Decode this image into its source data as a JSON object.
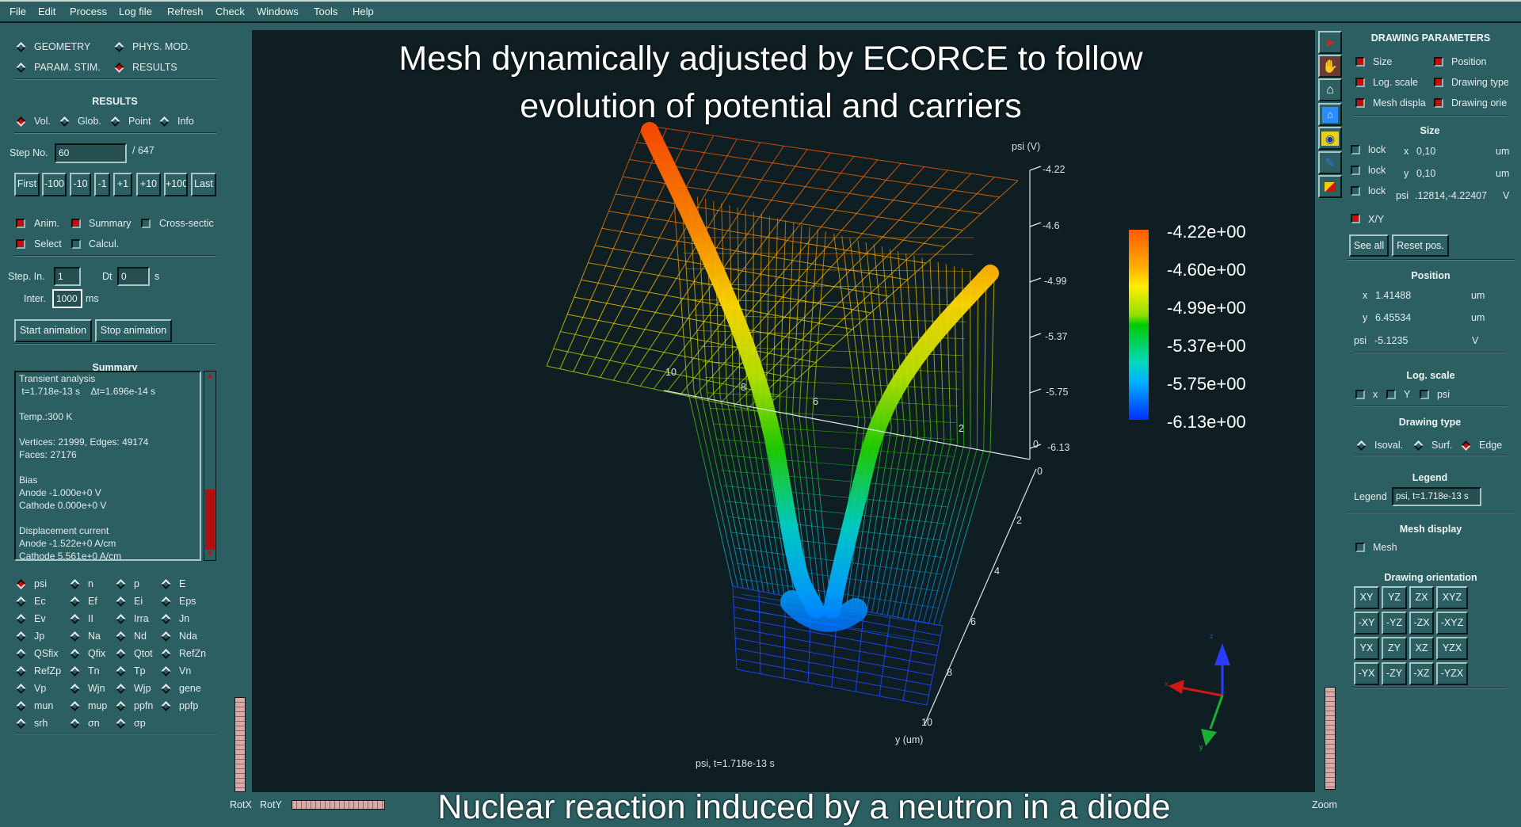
{
  "menubar": [
    "File",
    "Edit",
    "Process",
    "Log file",
    "Refresh",
    "Check",
    "Windows",
    "Tools",
    "Help"
  ],
  "mode": {
    "items": [
      {
        "label": "GEOMETRY",
        "selected": false
      },
      {
        "label": "PHYS. MOD.",
        "selected": false
      },
      {
        "label": "PARAM. STIM.",
        "selected": false
      },
      {
        "label": "RESULTS",
        "selected": true
      }
    ]
  },
  "results": {
    "title": "RESULTS",
    "views": [
      {
        "label": "Vol.",
        "selected": true
      },
      {
        "label": "Glob.",
        "selected": false
      },
      {
        "label": "Point",
        "selected": false
      },
      {
        "label": "Info",
        "selected": false
      }
    ],
    "step_label": "Step No.",
    "step_value": "60",
    "step_total": "/ 647",
    "step_buttons": [
      "First",
      "-100",
      "-10",
      "-1",
      "+1",
      "+10",
      "+100",
      "Last"
    ],
    "checks": [
      {
        "label": "Anim.",
        "checked": true
      },
      {
        "label": "Summary",
        "checked": true
      },
      {
        "label": "Cross-sectic",
        "checked": false
      },
      {
        "label": "Select",
        "checked": true
      },
      {
        "label": "Calcul.",
        "checked": false
      }
    ],
    "step_in_label": "Step. In.",
    "step_in_value": "1",
    "dt_label": "Dt",
    "dt_value": "0",
    "dt_unit": "s",
    "inter_label": "Inter.",
    "inter_value": "1000",
    "inter_unit": "ms",
    "start_animation": "Start animation",
    "stop_animation": "Stop animation"
  },
  "summary": {
    "title": "Summary",
    "lines": [
      "Transient analysis",
      " t=1.718e-13 s    Δt=1.696e-14 s",
      "",
      "Temp.:300 K",
      "",
      "Vertices: 21999, Edges: 49174",
      "Faces: 27176",
      "",
      "Bias",
      "Anode -1.000e+0 V",
      "Cathode 0.000e+0 V",
      "",
      "Displacement current",
      "Anode -1.522e+0 A/cm",
      "Cathode 5.561e+0 A/cm"
    ]
  },
  "quantities": [
    [
      "psi",
      "n",
      "p",
      "E"
    ],
    [
      "Ec",
      "Ef",
      "Ei",
      "Eps"
    ],
    [
      "Ev",
      "II",
      "Irra",
      "Jn"
    ],
    [
      "Jp",
      "Na",
      "Nd",
      "Nda"
    ],
    [
      "QSfix",
      "Qfix",
      "Qtot",
      "RefZn"
    ],
    [
      "RefZp",
      "Tn",
      "Tp",
      "Vn"
    ],
    [
      "Vp",
      "Wjn",
      "Wjp",
      "gene"
    ],
    [
      "mun",
      "mup",
      "ppfn",
      "ppfp"
    ],
    [
      "srh",
      "σn",
      "σp",
      ""
    ]
  ],
  "selected_quantity": "psi",
  "rot": {
    "rotx": "RotX",
    "roty": "RotY"
  },
  "overlay": {
    "title_line1": "Mesh dynamically adjusted by ECORCE to follow",
    "title_line2": "evolution of potential and carriers",
    "caption": "Nuclear reaction induced by a neutron in a diode"
  },
  "plot": {
    "z_label": "psi (V)",
    "z_ticks": [
      "-4.22",
      "-4.6",
      "-4.99",
      "-5.37",
      "-5.75",
      "-6.13"
    ],
    "x_ticks": [
      "10",
      "8",
      "6",
      "2",
      "0"
    ],
    "y_ticks": [
      "0",
      "2",
      "4",
      "6",
      "8",
      "10"
    ],
    "y_label": "y (um)",
    "colorbar": [
      "-4.22e+00",
      "-4.60e+00",
      "-4.99e+00",
      "-5.37e+00",
      "-5.75e+00",
      "-6.13e+00"
    ],
    "colormap": [
      "#ff5a00",
      "#ffb000",
      "#ffee00",
      "#8fe000",
      "#00cc00",
      "#00d8c0",
      "#00b0ff",
      "#0030ff"
    ],
    "legend": "psi, t=1.718e-13 s",
    "gizmo": {
      "x": "x",
      "y": "y",
      "z": "z"
    }
  },
  "toolbar": [
    "pointer-icon",
    "hand-icon",
    "home-icon",
    "fit-view-icon",
    "eye-icon",
    "flashlight-icon",
    "colormap-icon"
  ],
  "drawing": {
    "title": "DRAWING PARAMETERS",
    "sections": [
      {
        "label": "Size",
        "checked": true
      },
      {
        "label": "Position",
        "checked": true
      },
      {
        "label": "Log. scale",
        "checked": true
      },
      {
        "label": "Drawing typе",
        "checked": true
      },
      {
        "label": "Mesh displa",
        "checked": true
      },
      {
        "label": "Drawing orie",
        "checked": true
      }
    ],
    "size_title": "Size",
    "size_rows": [
      {
        "lock": "lock",
        "axis": "x",
        "value": "0,10",
        "unit": "um"
      },
      {
        "lock": "lock",
        "axis": "y",
        "value": "0,10",
        "unit": "um"
      },
      {
        "lock": "lock",
        "axis": "psi",
        "value": ".12814,-4.22407",
        "unit": "V"
      }
    ],
    "xy_label": "X/Y",
    "see_all": "See all",
    "reset_pos": "Reset pos.",
    "position_title": "Position",
    "position_rows": [
      {
        "axis": "x",
        "value": "1.41488",
        "unit": "um"
      },
      {
        "axis": "y",
        "value": "6.45534",
        "unit": "um"
      },
      {
        "axis": "psi",
        "value": "-5.1235",
        "unit": "V"
      }
    ],
    "log_title": "Log. scale",
    "log_items": [
      "x",
      "Y",
      "psi"
    ],
    "type_title": "Drawing type",
    "types": [
      {
        "label": "Isoval.",
        "selected": false
      },
      {
        "label": "Surf.",
        "selected": false
      },
      {
        "label": "Edge",
        "selected": true
      }
    ],
    "legend_title": "Legend",
    "legend_label": "Legend",
    "legend_value": "psi, t=1.718e-13 s",
    "mesh_title": "Mesh display",
    "mesh_label": "Mesh",
    "orient_title": "Drawing orientation",
    "orientations": [
      [
        "XY",
        "YZ",
        "ZX",
        "XYZ"
      ],
      [
        "-XY",
        "-YZ",
        "-ZX",
        "-XYZ"
      ],
      [
        "YX",
        "ZY",
        "XZ",
        "YZX"
      ],
      [
        "-YX",
        "-ZY",
        "-XZ",
        "-YZX"
      ]
    ],
    "zoom_label": "Zoom"
  }
}
